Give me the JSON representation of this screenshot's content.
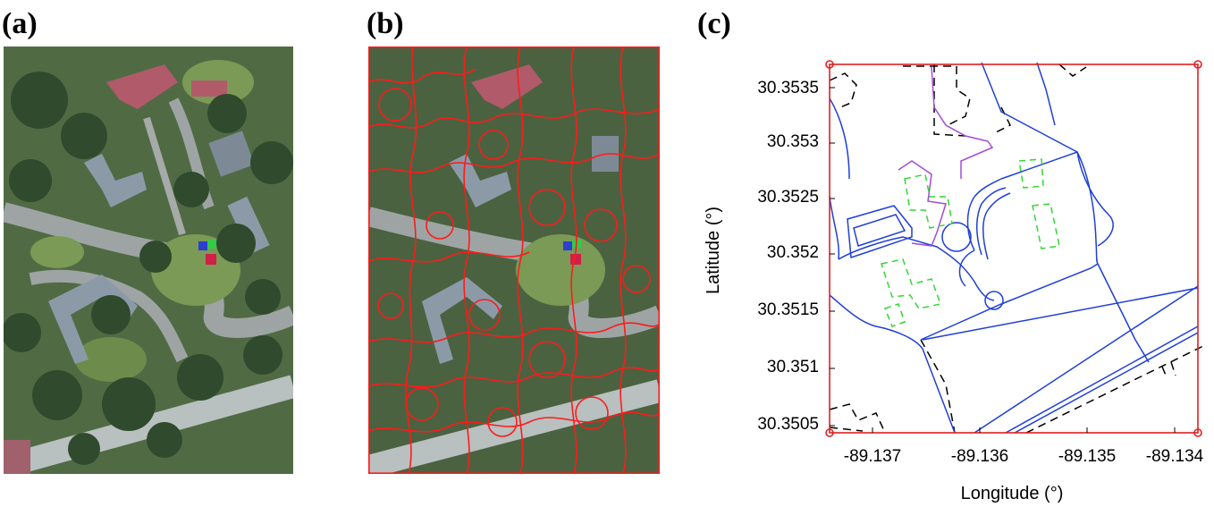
{
  "labels": {
    "a": "(a)",
    "b": "(b)",
    "c": "(c)"
  },
  "colors": {
    "tree": "#2f4a2c",
    "grass": "#7a9a55",
    "road": "#9ea4a4",
    "roof_red": "#b05a6a",
    "building": "#8c9aa8",
    "segment_line": "#ff1a1a",
    "road_line": "#1f3fd6",
    "building_line": "#000000",
    "tree_building_line": "#33d633",
    "parking_line": "#a24cd6",
    "frame": "#e02020"
  },
  "panel_c": {
    "xlabel": "Longitude (°)",
    "ylabel": "Latitude (°)",
    "xticks": [
      "-89.137",
      "-89.136",
      "-89.135",
      "-89.134"
    ],
    "yticks": [
      "30.3535",
      "30.353",
      "30.3525",
      "30.352",
      "30.3515",
      "30.351",
      "30.3505"
    ]
  }
}
